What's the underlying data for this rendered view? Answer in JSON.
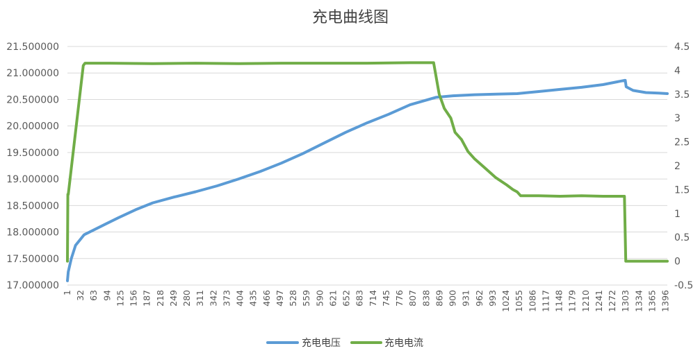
{
  "chart_data": {
    "type": "line",
    "title": "充电曲线图",
    "x": {
      "tick_labels": [
        "1",
        "32",
        "63",
        "94",
        "125",
        "156",
        "187",
        "218",
        "249",
        "280",
        "311",
        "342",
        "373",
        "404",
        "435",
        "466",
        "497",
        "528",
        "559",
        "590",
        "621",
        "652",
        "683",
        "714",
        "745",
        "776",
        "807",
        "838",
        "869",
        "900",
        "931",
        "962",
        "993",
        "1024",
        "1055",
        "1086",
        "1117",
        "1148",
        "1179",
        "1210",
        "1241",
        "1272",
        "1303",
        "1334",
        "1365",
        "1396"
      ],
      "min": 1,
      "max": 1400
    },
    "y_left": {
      "min": 17.0,
      "max": 21.5,
      "step": 0.5,
      "tick_labels": [
        "17.000000",
        "17.500000",
        "18.000000",
        "18.500000",
        "19.000000",
        "19.500000",
        "20.000000",
        "20.500000",
        "21.000000",
        "21.500000"
      ]
    },
    "y_right": {
      "min": -0.5,
      "max": 4.5,
      "step": 0.5,
      "tick_labels": [
        "-0.5",
        "0",
        "0.5",
        "1",
        "1.5",
        "2",
        "2.5",
        "3",
        "3.5",
        "4",
        "4.5"
      ]
    },
    "grid": true,
    "legend_position": "bottom",
    "series": [
      {
        "name": "充电电压",
        "axis": "left",
        "color": "#5b9bd5",
        "x": [
          1,
          3,
          10,
          20,
          40,
          60,
          90,
          120,
          160,
          200,
          250,
          300,
          350,
          400,
          450,
          500,
          550,
          600,
          650,
          700,
          750,
          800,
          860,
          900,
          950,
          1000,
          1050,
          1100,
          1150,
          1200,
          1250,
          1300,
          1302,
          1304,
          1320,
          1350,
          1380,
          1400
        ],
        "values": [
          17.08,
          17.25,
          17.5,
          17.75,
          17.95,
          18.03,
          18.15,
          18.27,
          18.42,
          18.55,
          18.66,
          18.76,
          18.87,
          19.0,
          19.14,
          19.3,
          19.48,
          19.68,
          19.88,
          20.06,
          20.22,
          20.4,
          20.54,
          20.57,
          20.59,
          20.6,
          20.61,
          20.65,
          20.69,
          20.73,
          20.78,
          20.86,
          20.86,
          20.74,
          20.67,
          20.63,
          20.62,
          20.61
        ]
      },
      {
        "name": "充电电流",
        "axis": "right",
        "color": "#70ad47",
        "x": [
          1,
          2,
          3,
          38,
          42,
          100,
          200,
          300,
          400,
          500,
          600,
          700,
          800,
          855,
          868,
          880,
          895,
          905,
          920,
          935,
          950,
          975,
          1000,
          1025,
          1040,
          1050,
          1058,
          1100,
          1150,
          1200,
          1250,
          1300,
          1303,
          1306,
          1330,
          1360,
          1400
        ],
        "values": [
          0.0,
          1.4,
          1.4,
          4.1,
          4.15,
          4.15,
          4.14,
          4.15,
          4.14,
          4.15,
          4.15,
          4.15,
          4.16,
          4.16,
          3.5,
          3.2,
          3.0,
          2.7,
          2.55,
          2.3,
          2.15,
          1.95,
          1.75,
          1.6,
          1.5,
          1.45,
          1.37,
          1.37,
          1.36,
          1.37,
          1.36,
          1.36,
          0.0,
          0.0,
          0.0,
          0.0,
          0.0
        ]
      }
    ]
  }
}
